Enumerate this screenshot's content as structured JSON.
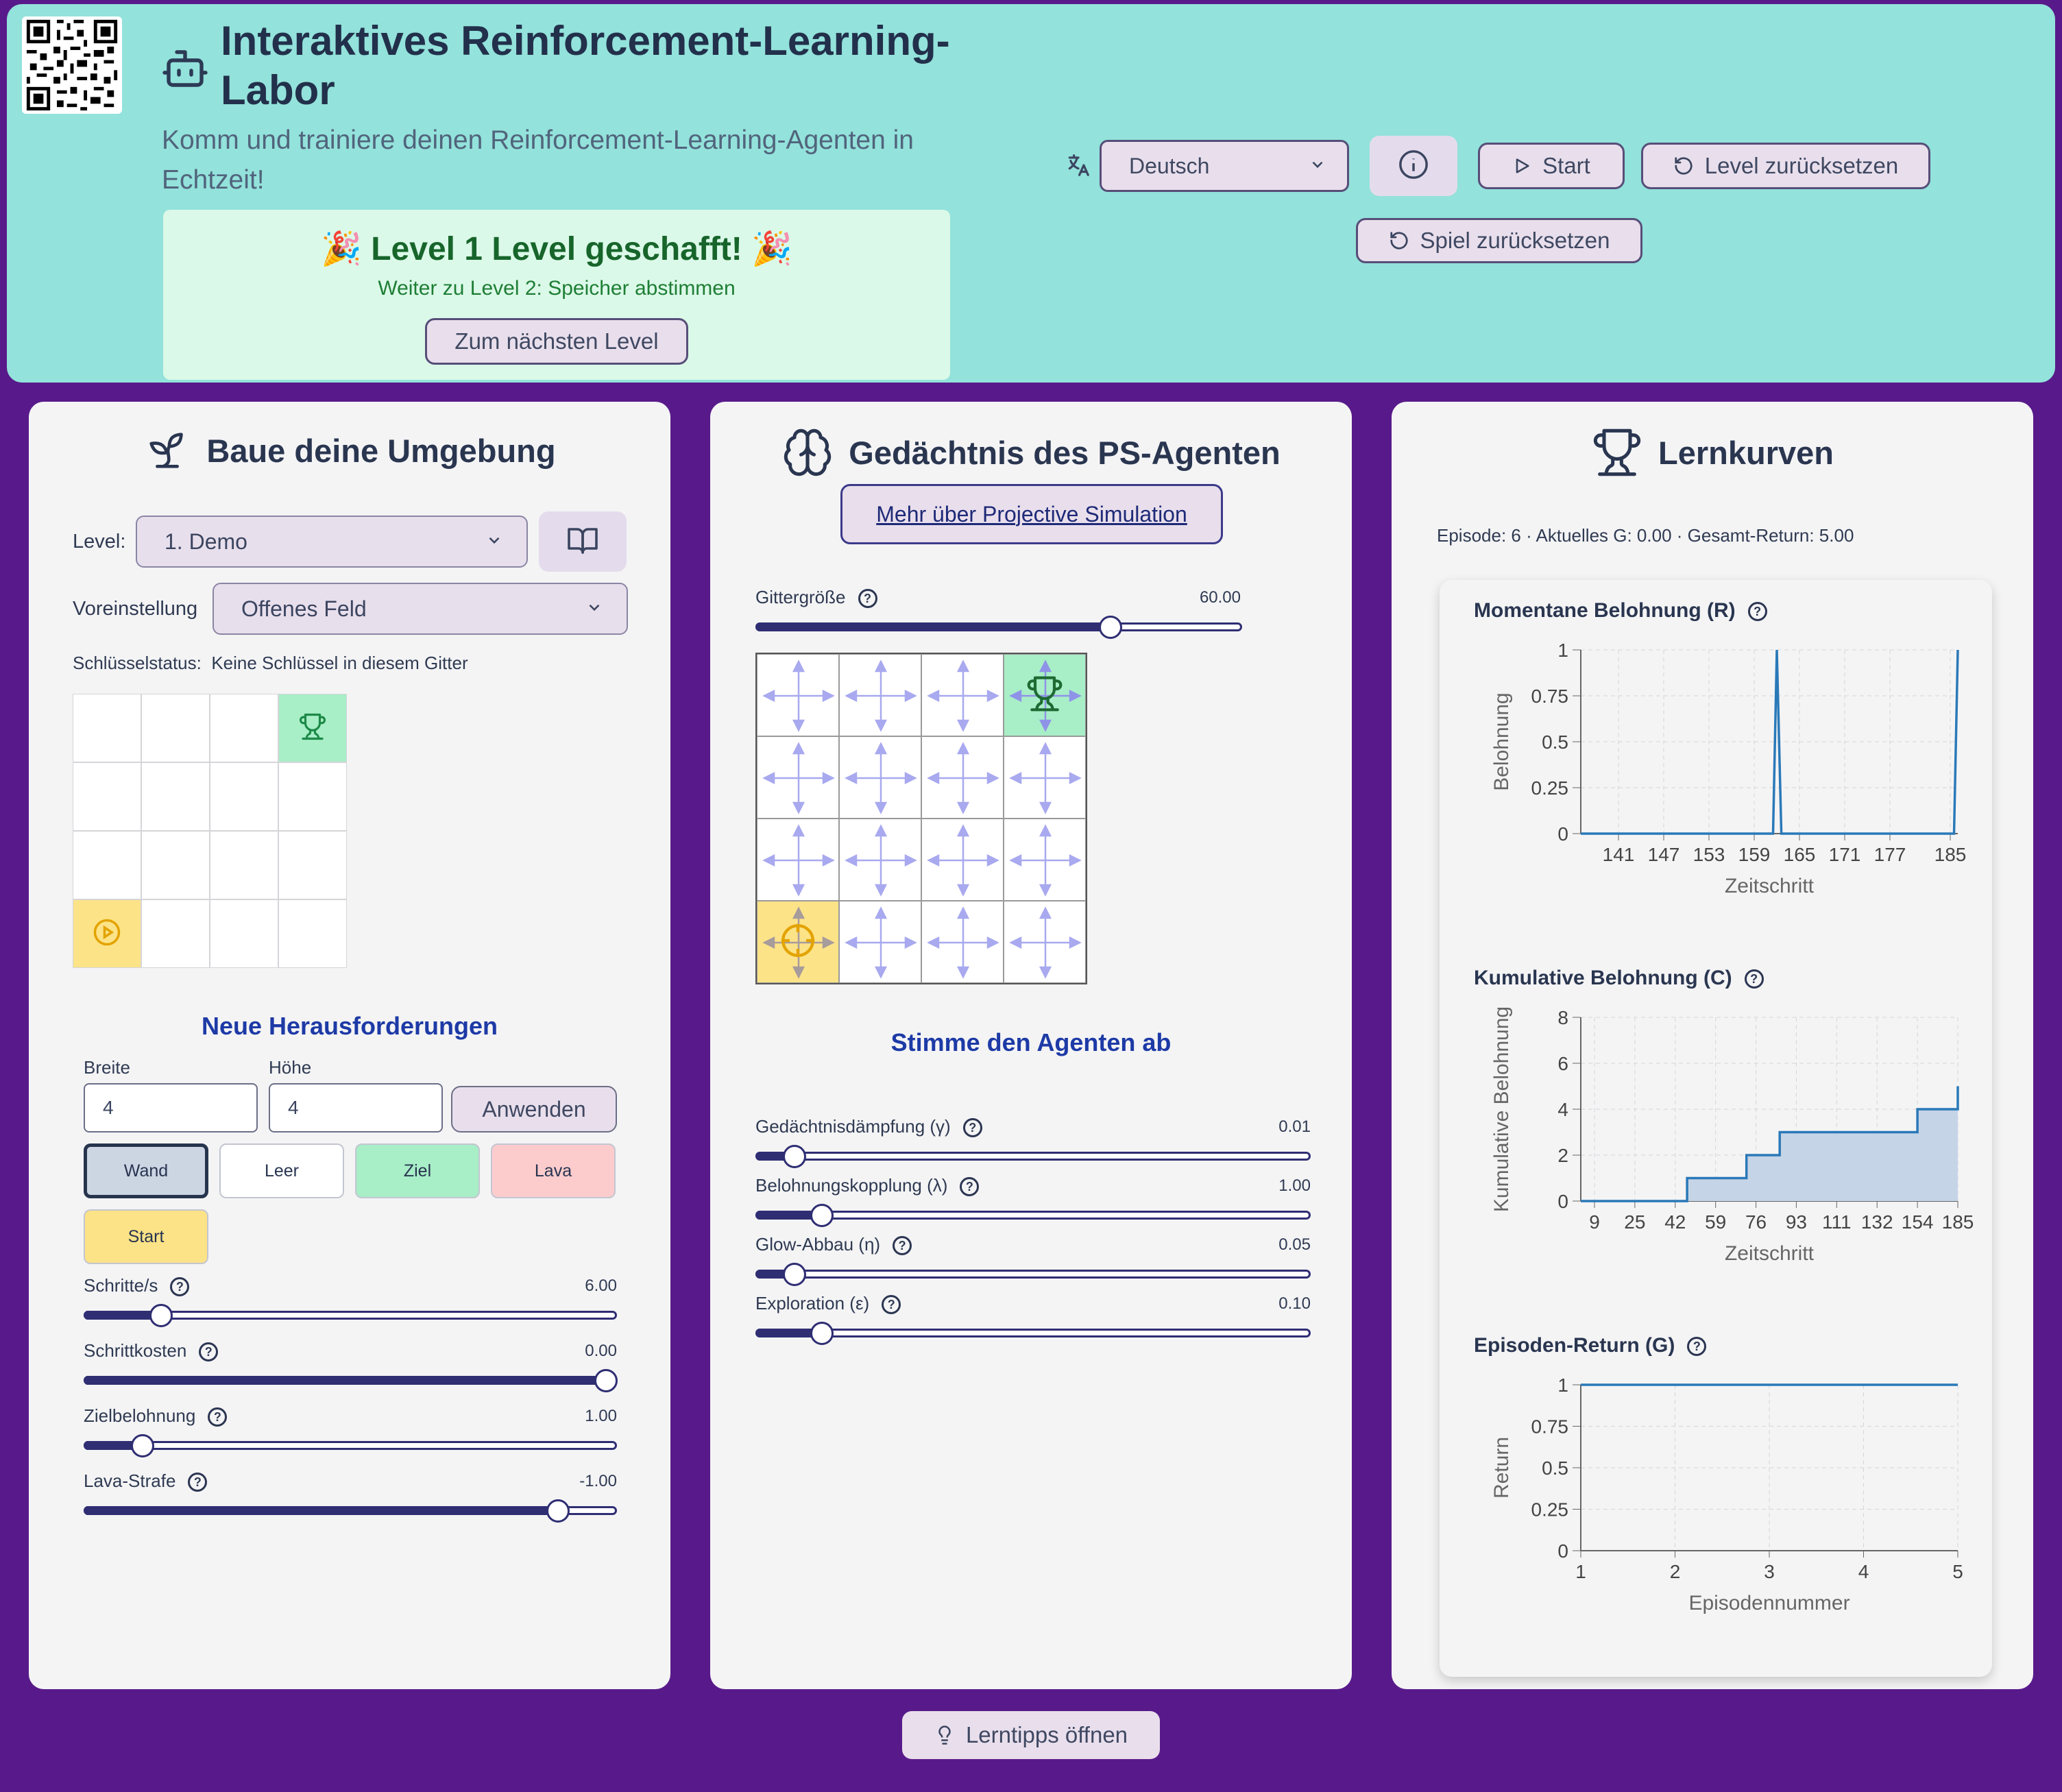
{
  "header": {
    "title": "Interaktives Reinforcement-Learning-Labor",
    "subtitle": "Komm und trainiere deinen Reinforcement-Learning-Agenten in Echtzeit!",
    "banner_title": "🎉 Level 1 Level geschafft! 🎉",
    "banner_sub": "Weiter zu Level 2: Speicher abstimmen",
    "next_level": "Zum nächsten Level",
    "language": "Deutsch",
    "start": "Start",
    "reset_level": "Level zurücksetzen",
    "reset_game": "Spiel zurücksetzen"
  },
  "env": {
    "title": "Baue deine Umgebung",
    "level_label": "Level:",
    "level_value": "1. Demo",
    "preset_label": "Voreinstellung",
    "preset_value": "Offenes Feld",
    "key_status_label": "Schlüsselstatus:",
    "key_status_value": "Keine Schlüssel in diesem Gitter",
    "grid": {
      "cols": 4,
      "rows": 4,
      "goal": [
        3,
        0
      ],
      "start": [
        0,
        3
      ]
    },
    "challenges_heading": "Neue Herausforderungen",
    "width_label": "Breite",
    "width_value": "4",
    "height_label": "Höhe",
    "height_value": "4",
    "apply": "Anwenden",
    "tiles": [
      "Wand",
      "Leer",
      "Ziel",
      "Lava",
      "Start"
    ],
    "sliders": [
      {
        "label": "Schritte/s",
        "value": "6.00",
        "fraction": 0.145
      },
      {
        "label": "Schrittkosten",
        "value": "0.00",
        "fraction": 0.98
      },
      {
        "label": "Zielbelohnung",
        "value": "1.00",
        "fraction": 0.11
      },
      {
        "label": "Lava-Strafe",
        "value": "-1.00",
        "fraction": 0.89
      }
    ]
  },
  "memory": {
    "title": "Gedächtnis des PS-Agenten",
    "more_link": "Mehr über Projective Simulation",
    "grid_size_label": "Gittergröße",
    "grid_size_value": "60.00",
    "grid_size_fraction": 0.73,
    "grid": {
      "cols": 4,
      "rows": 4,
      "goal": [
        3,
        0
      ],
      "start": [
        0,
        3
      ]
    },
    "tune_heading": "Stimme den Agenten ab",
    "sliders": [
      {
        "label": "Gedächtnisdämpfung (γ)",
        "value": "0.01",
        "fraction": 0.07
      },
      {
        "label": "Belohnungskopplung (λ)",
        "value": "1.00",
        "fraction": 0.12
      },
      {
        "label": "Glow-Abbau (η)",
        "value": "0.05",
        "fraction": 0.07
      },
      {
        "label": "Exploration (ε)",
        "value": "0.10",
        "fraction": 0.12
      }
    ]
  },
  "curves": {
    "title": "Lernkurven",
    "stats": "Episode: 6 · Aktuelles G: 0.00 · Gesamt-Return: 5.00"
  },
  "chart_data": [
    {
      "type": "line",
      "title": "Momentane Belohnung (R)",
      "xlabel": "Zeitschritt",
      "ylabel": "Belohnung",
      "xlim": [
        136,
        186
      ],
      "ylim": [
        0,
        1
      ],
      "xticks": [
        141,
        147,
        153,
        159,
        165,
        171,
        177,
        185
      ],
      "yticks": [
        0,
        0.25,
        0.5,
        0.75,
        1
      ],
      "x": [
        136,
        161.5,
        162,
        162.6,
        163.2,
        185.5,
        186
      ],
      "y": [
        0,
        0,
        1,
        0,
        0,
        0,
        1
      ],
      "grid": true
    },
    {
      "type": "area",
      "title": "Kumulative Belohnung (C)",
      "xlabel": "Zeitschritt",
      "ylabel": "Kumulative Belohnung",
      "ylim": [
        0,
        8
      ],
      "xticks": [
        9,
        25,
        42,
        59,
        76,
        93,
        111,
        132,
        154,
        185
      ],
      "yticks": [
        0,
        2,
        4,
        6,
        8
      ],
      "x": [
        0,
        47,
        47,
        72,
        72,
        86,
        86,
        154,
        154,
        185,
        185
      ],
      "y": [
        0,
        0,
        1,
        1,
        2,
        2,
        3,
        3,
        4,
        4,
        5
      ],
      "grid": true
    },
    {
      "type": "line",
      "title": "Episoden-Return (G)",
      "xlabel": "Episodennummer",
      "ylabel": "Return",
      "xlim": [
        1,
        5
      ],
      "ylim": [
        0,
        1
      ],
      "xticks": [
        1,
        2,
        3,
        4,
        5
      ],
      "yticks": [
        0,
        0.25,
        0.5,
        0.75,
        1
      ],
      "x": [
        1,
        2,
        3,
        4,
        5
      ],
      "y": [
        1,
        1,
        1,
        1,
        1
      ],
      "grid": true
    }
  ],
  "tips_button": "Lerntipps öffnen"
}
